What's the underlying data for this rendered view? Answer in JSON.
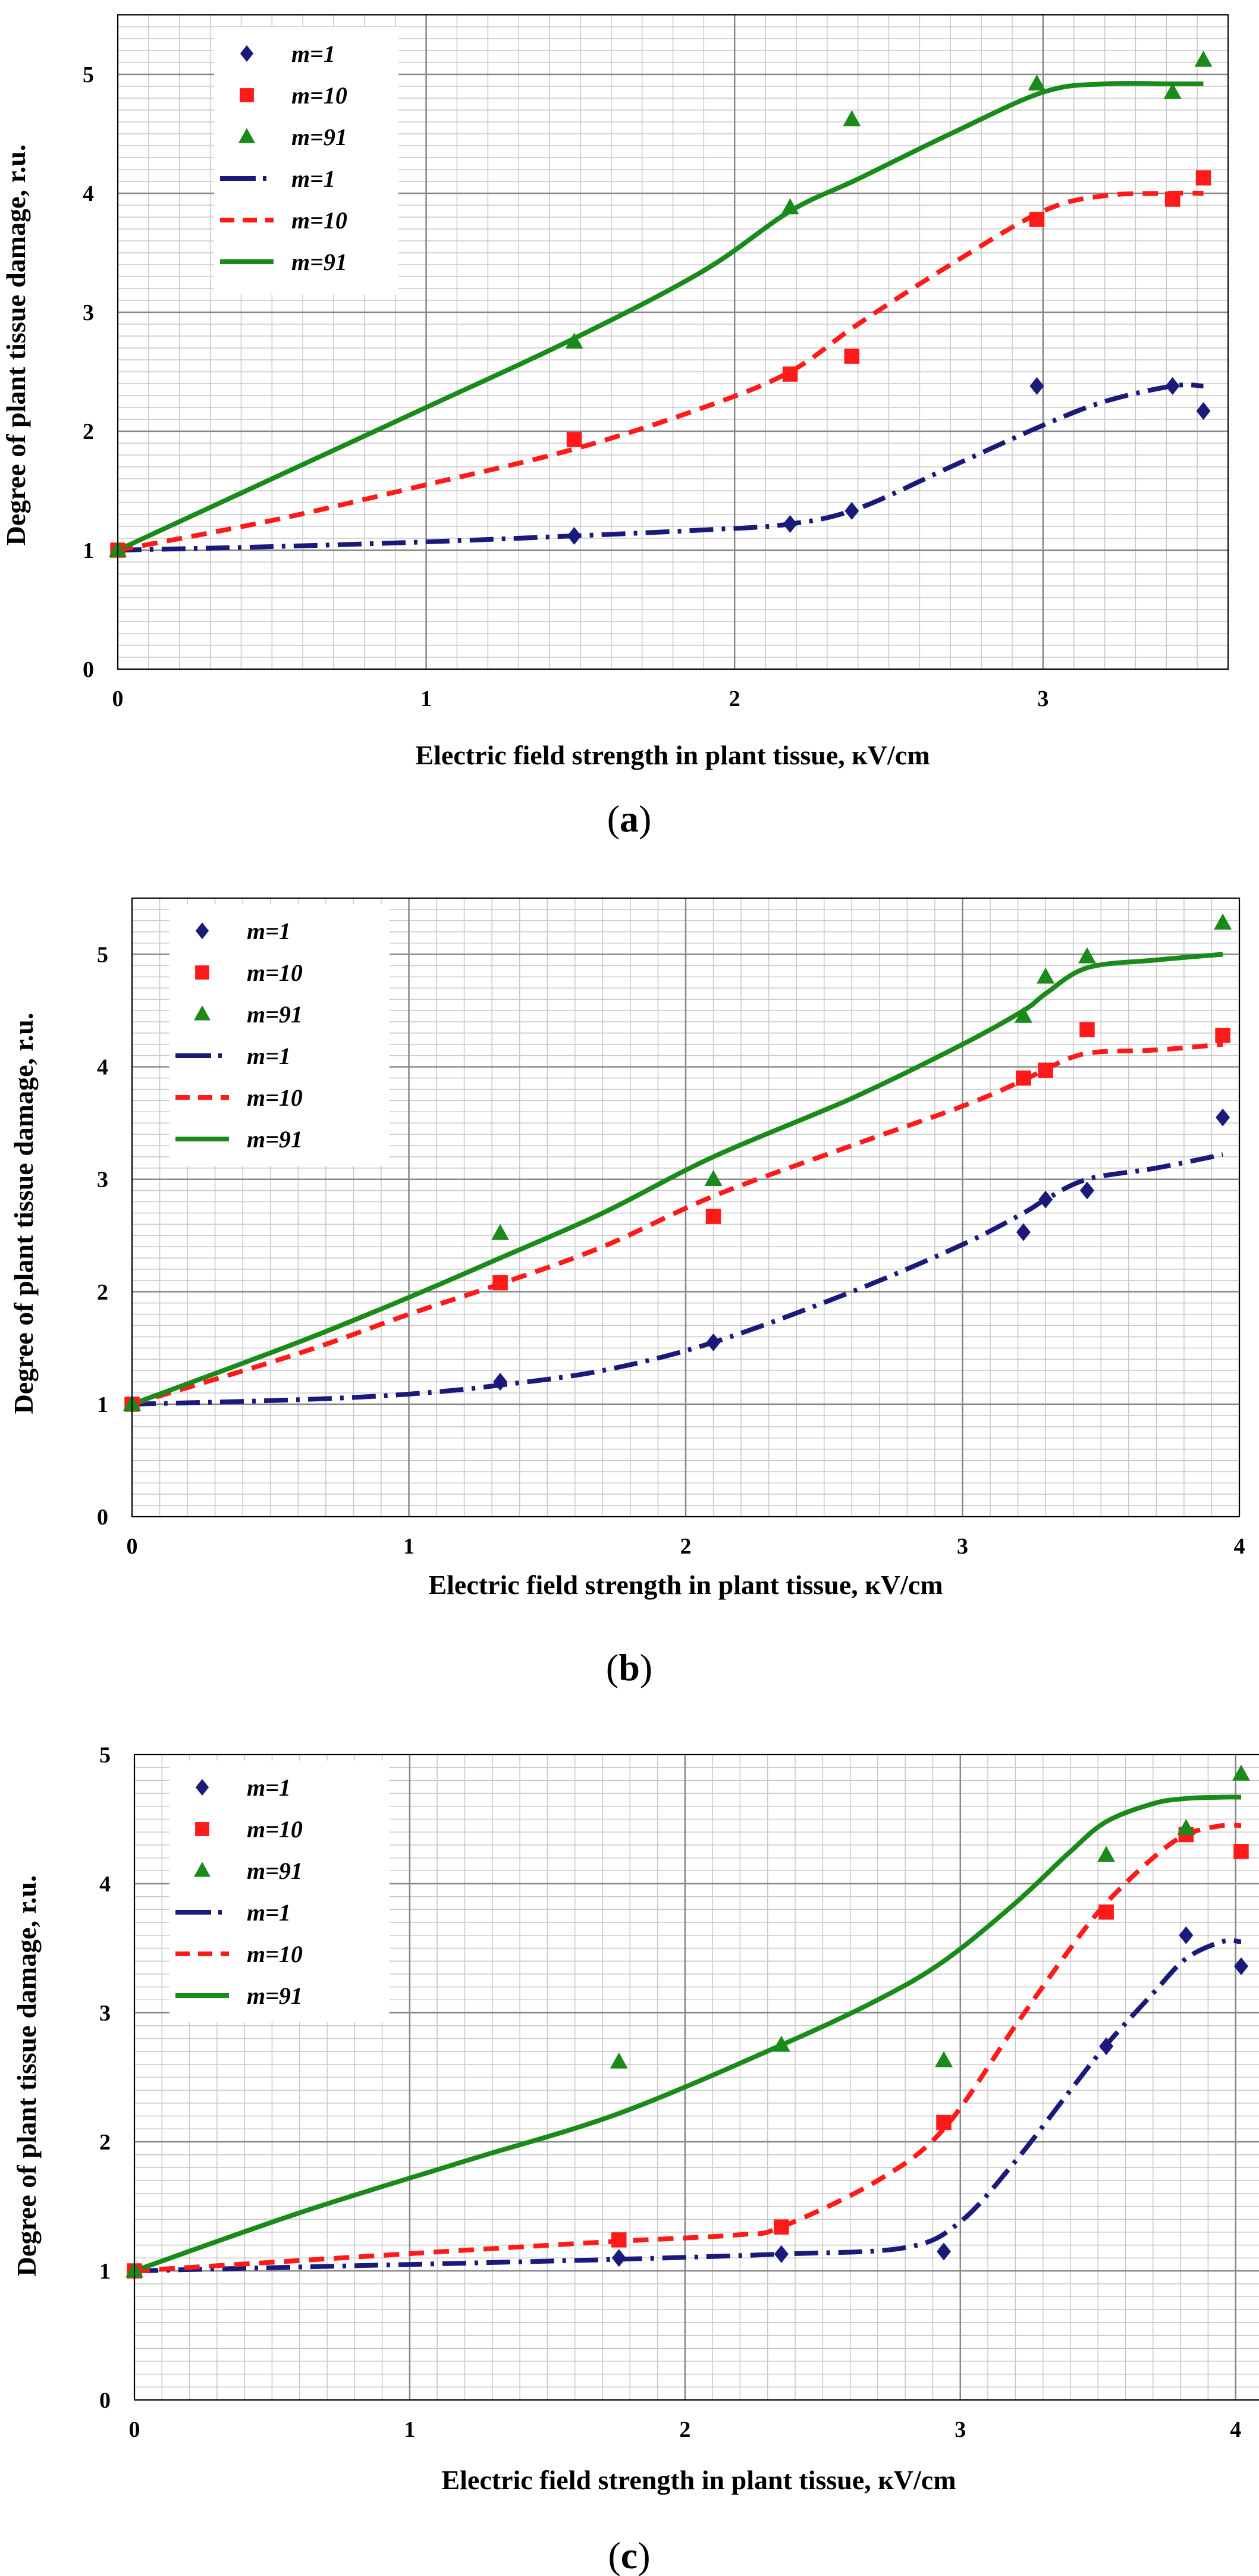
{
  "chart_data": [
    {
      "id": "a",
      "type": "scatter",
      "panel_label": "a",
      "xlabel": "Electric field strength in plant tissue, кV/cm",
      "ylabel": "Degree of plant tissue damage, r.u.",
      "xlim": [
        0,
        3.6
      ],
      "ylim": [
        0,
        5.5
      ],
      "xticks": [
        0,
        1,
        2,
        3
      ],
      "xtick_labels": [
        "0",
        "1",
        "2",
        "3"
      ],
      "yticks": [
        0,
        1,
        2,
        3,
        4,
        5
      ],
      "ytick_labels": [
        "0",
        "1",
        "2",
        "3",
        "4",
        "5"
      ],
      "grid": true,
      "legend_position": "top-left",
      "legend": [
        "m=1",
        "m=10",
        "m=91",
        "m=1",
        "m=10",
        "m=91"
      ],
      "colors": {
        "m1": "#1a1a7a",
        "m10": "#ff1a1a",
        "m91": "#1a8a1a"
      },
      "series": [
        {
          "name": "m=1",
          "kind": "points",
          "marker": "diamond",
          "color": "#1a1a7a",
          "x": [
            0,
            1.48,
            2.18,
            2.38,
            2.98,
            3.42,
            3.52
          ],
          "y": [
            1.0,
            1.12,
            1.22,
            1.33,
            2.38,
            2.38,
            2.17
          ]
        },
        {
          "name": "m=10",
          "kind": "points",
          "marker": "square",
          "color": "#ff1a1a",
          "x": [
            0,
            1.48,
            2.18,
            2.38,
            2.98,
            3.42,
            3.52
          ],
          "y": [
            1.0,
            1.93,
            2.48,
            2.63,
            3.78,
            3.95,
            4.13
          ]
        },
        {
          "name": "m=91",
          "kind": "points",
          "marker": "triangle",
          "color": "#1a8a1a",
          "x": [
            0,
            1.48,
            2.18,
            2.38,
            2.98,
            3.42,
            3.52
          ],
          "y": [
            1.0,
            2.75,
            3.88,
            4.62,
            4.92,
            4.85,
            5.12
          ]
        },
        {
          "name": "m=1",
          "kind": "line",
          "dash": "dashdot",
          "color": "#1a1a7a",
          "x": [
            0,
            0.5,
            1.0,
            1.48,
            1.9,
            2.18,
            2.4,
            2.7,
            3.0,
            3.2,
            3.42,
            3.52
          ],
          "y": [
            1.0,
            1.03,
            1.07,
            1.12,
            1.17,
            1.22,
            1.35,
            1.7,
            2.05,
            2.25,
            2.38,
            2.38
          ]
        },
        {
          "name": "m=10",
          "kind": "line",
          "dash": "dashed",
          "color": "#ff1a1a",
          "x": [
            0,
            0.5,
            1.0,
            1.48,
            1.9,
            2.18,
            2.4,
            2.7,
            3.0,
            3.2,
            3.42,
            3.52
          ],
          "y": [
            1.0,
            1.25,
            1.55,
            1.85,
            2.2,
            2.5,
            2.9,
            3.4,
            3.85,
            3.98,
            4.0,
            4.0
          ]
        },
        {
          "name": "m=91",
          "kind": "line",
          "dash": "solid",
          "color": "#1a8a1a",
          "x": [
            0,
            0.5,
            1.0,
            1.48,
            1.9,
            2.18,
            2.4,
            2.7,
            3.0,
            3.2,
            3.42,
            3.52
          ],
          "y": [
            1.0,
            1.6,
            2.2,
            2.78,
            3.35,
            3.85,
            4.12,
            4.5,
            4.85,
            4.92,
            4.92,
            4.92
          ]
        }
      ]
    },
    {
      "id": "b",
      "type": "scatter",
      "panel_label": "b",
      "xlabel": "Electric field strength in plant tissue, кV/cm",
      "ylabel": "Degree of plant tissue damage, r.u.",
      "xlim": [
        0,
        4
      ],
      "ylim": [
        0,
        5.5
      ],
      "xticks": [
        0,
        1,
        2,
        3,
        4
      ],
      "xtick_labels": [
        "0",
        "1",
        "2",
        "3",
        "4"
      ],
      "yticks": [
        0,
        1,
        2,
        3,
        4,
        5
      ],
      "ytick_labels": [
        "0",
        "1",
        "2",
        "3",
        "4",
        "5"
      ],
      "grid": true,
      "legend_position": "top-left",
      "legend": [
        "m=1",
        "m=10",
        "m=91",
        "m=1",
        "m=10",
        "m=91"
      ],
      "colors": {
        "m1": "#1a1a7a",
        "m10": "#ff1a1a",
        "m91": "#1a8a1a"
      },
      "series": [
        {
          "name": "m=1",
          "kind": "points",
          "marker": "diamond",
          "color": "#1a1a7a",
          "x": [
            0,
            1.33,
            2.1,
            3.22,
            3.3,
            3.45,
            3.94
          ],
          "y": [
            1.0,
            1.2,
            1.55,
            2.53,
            2.82,
            2.9,
            3.55
          ]
        },
        {
          "name": "m=10",
          "kind": "points",
          "marker": "square",
          "color": "#ff1a1a",
          "x": [
            0,
            1.33,
            2.1,
            3.22,
            3.3,
            3.45,
            3.94
          ],
          "y": [
            1.0,
            2.08,
            2.67,
            3.9,
            3.97,
            4.33,
            4.28
          ]
        },
        {
          "name": "m=91",
          "kind": "points",
          "marker": "triangle",
          "color": "#1a8a1a",
          "x": [
            0,
            1.33,
            2.1,
            3.22,
            3.3,
            3.45,
            3.94
          ],
          "y": [
            1.0,
            2.52,
            3.0,
            4.45,
            4.8,
            4.98,
            5.28
          ]
        },
        {
          "name": "m=1",
          "kind": "line",
          "dash": "dashdot",
          "color": "#1a1a7a",
          "x": [
            0,
            0.6,
            1.0,
            1.33,
            1.7,
            2.1,
            2.6,
            3.0,
            3.22,
            3.3,
            3.45,
            3.7,
            3.94
          ],
          "y": [
            1.0,
            1.04,
            1.09,
            1.17,
            1.3,
            1.55,
            2.0,
            2.42,
            2.7,
            2.82,
            3.0,
            3.1,
            3.22
          ]
        },
        {
          "name": "m=10",
          "kind": "line",
          "dash": "dashed",
          "color": "#ff1a1a",
          "x": [
            0,
            0.6,
            1.0,
            1.33,
            1.7,
            2.1,
            2.6,
            3.0,
            3.22,
            3.3,
            3.45,
            3.7,
            3.94
          ],
          "y": [
            1.0,
            1.45,
            1.8,
            2.07,
            2.4,
            2.85,
            3.3,
            3.65,
            3.88,
            3.98,
            4.12,
            4.15,
            4.2
          ]
        },
        {
          "name": "m=91",
          "kind": "line",
          "dash": "solid",
          "color": "#1a8a1a",
          "x": [
            0,
            0.6,
            1.0,
            1.33,
            1.7,
            2.1,
            2.6,
            3.0,
            3.22,
            3.3,
            3.45,
            3.7,
            3.94
          ],
          "y": [
            1.0,
            1.55,
            1.95,
            2.3,
            2.7,
            3.2,
            3.72,
            4.2,
            4.5,
            4.65,
            4.88,
            4.95,
            5.0
          ]
        }
      ]
    },
    {
      "id": "c",
      "type": "scatter",
      "panel_label": "c",
      "xlabel": "Electric field strength in plant tissue, кV/cm",
      "ylabel": "Degree of plant tissue damage, r.u.",
      "xlim": [
        0,
        4.1
      ],
      "ylim": [
        0,
        5
      ],
      "xticks": [
        0,
        1,
        2,
        3,
        4
      ],
      "xtick_labels": [
        "0",
        "1",
        "2",
        "3",
        "4"
      ],
      "yticks": [
        0,
        1,
        2,
        3,
        4,
        5
      ],
      "ytick_labels": [
        "0",
        "1",
        "2",
        "3",
        "4",
        "5"
      ],
      "grid": true,
      "legend_position": "top-left",
      "legend": [
        "m=1",
        "m=10",
        "m=91",
        "m=1",
        "m=10",
        "m=91"
      ],
      "colors": {
        "m1": "#1a1a7a",
        "m10": "#ff1a1a",
        "m91": "#1a8a1a"
      },
      "series": [
        {
          "name": "m=1",
          "kind": "points",
          "marker": "diamond",
          "color": "#1a1a7a",
          "x": [
            0,
            1.76,
            2.35,
            2.94,
            3.53,
            3.82,
            4.02
          ],
          "y": [
            1.0,
            1.1,
            1.13,
            1.15,
            2.74,
            3.6,
            3.36
          ]
        },
        {
          "name": "m=10",
          "kind": "points",
          "marker": "square",
          "color": "#ff1a1a",
          "x": [
            0,
            1.76,
            2.35,
            2.94,
            3.53,
            3.82,
            4.02
          ],
          "y": [
            1.0,
            1.24,
            1.34,
            2.15,
            3.78,
            4.38,
            4.25
          ]
        },
        {
          "name": "m=91",
          "kind": "points",
          "marker": "triangle",
          "color": "#1a8a1a",
          "x": [
            0,
            1.76,
            2.35,
            2.94,
            3.53,
            3.82,
            4.02
          ],
          "y": [
            1.0,
            2.62,
            2.75,
            2.63,
            4.22,
            4.43,
            4.85
          ]
        },
        {
          "name": "m=1",
          "kind": "line",
          "dash": "dashdot",
          "color": "#1a1a7a",
          "x": [
            0,
            0.6,
            1.2,
            1.76,
            2.35,
            2.8,
            3.0,
            3.2,
            3.4,
            3.53,
            3.7,
            3.82,
            3.95,
            4.02
          ],
          "y": [
            1.0,
            1.03,
            1.06,
            1.09,
            1.13,
            1.18,
            1.38,
            1.85,
            2.4,
            2.75,
            3.15,
            3.42,
            3.55,
            3.55
          ]
        },
        {
          "name": "m=10",
          "kind": "line",
          "dash": "dashed",
          "color": "#ff1a1a",
          "x": [
            0,
            0.6,
            1.2,
            1.76,
            2.2,
            2.35,
            2.7,
            2.94,
            3.2,
            3.4,
            3.53,
            3.7,
            3.82,
            3.95,
            4.02
          ],
          "y": [
            1.0,
            1.08,
            1.16,
            1.23,
            1.28,
            1.34,
            1.7,
            2.1,
            2.9,
            3.5,
            3.85,
            4.2,
            4.38,
            4.45,
            4.45
          ]
        },
        {
          "name": "m=91",
          "kind": "line",
          "dash": "solid",
          "color": "#1a8a1a",
          "x": [
            0,
            0.6,
            1.2,
            1.76,
            2.35,
            2.7,
            2.94,
            3.2,
            3.4,
            3.53,
            3.7,
            3.82,
            3.95,
            4.02
          ],
          "y": [
            1.0,
            1.45,
            1.85,
            2.22,
            2.75,
            3.1,
            3.4,
            3.85,
            4.25,
            4.48,
            4.62,
            4.66,
            4.67,
            4.67
          ]
        }
      ]
    }
  ]
}
